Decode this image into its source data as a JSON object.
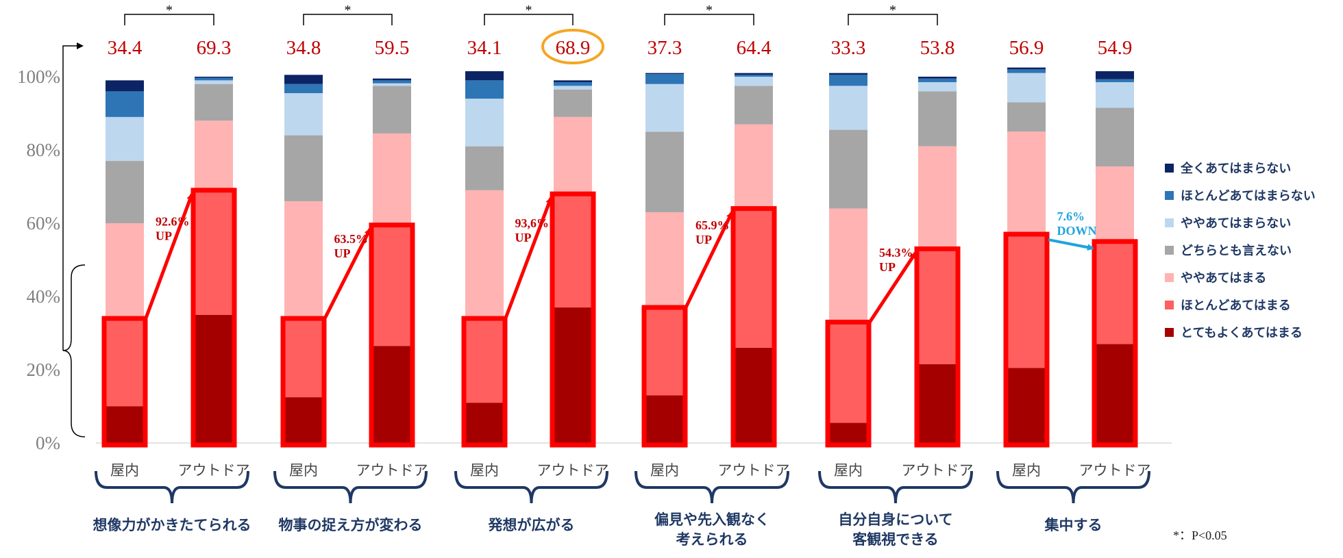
{
  "chart_data": {
    "type": "bar",
    "stacked": true,
    "yaxis": {
      "min": 0,
      "max": 100,
      "ticks": [
        "0%",
        "20%",
        "40%",
        "60%",
        "80%",
        "100%"
      ]
    },
    "legend_position": "right",
    "groups": [
      {
        "name": "想像力がかきたてられる",
        "significance": "*",
        "change": {
          "text": "92.6%\nUP",
          "direction": "up"
        },
        "bars": [
          {
            "label": "屋内",
            "top_value": "34.4",
            "values": [
              10,
              24,
              26,
              17,
              12,
              7,
              3
            ]
          },
          {
            "label": "アウトドア",
            "top_value": "69.3",
            "values": [
              35,
              34,
              19,
              10,
              1,
              0.7,
              0.3
            ]
          }
        ]
      },
      {
        "name": "物事の捉え方が変わる",
        "significance": "*",
        "change": {
          "text": "63.5%\nUP",
          "direction": "up"
        },
        "bars": [
          {
            "label": "屋内",
            "top_value": "34.8",
            "values": [
              12.5,
              21.5,
              32,
              18,
              11.5,
              2.5,
              2.5
            ]
          },
          {
            "label": "アウトドア",
            "top_value": "59.5",
            "values": [
              26.5,
              33,
              25,
              13,
              0.7,
              0.8,
              0.5
            ]
          }
        ]
      },
      {
        "name": "発想が広がる",
        "significance": "*",
        "change": {
          "text": "93,6%\nUP",
          "direction": "up"
        },
        "highlight_value": "68.9",
        "bars": [
          {
            "label": "屋内",
            "top_value": "34.1",
            "values": [
              11,
              23,
              35,
              12,
              13,
              5,
              2.5
            ]
          },
          {
            "label": "アウトドア",
            "top_value": "68.9",
            "values": [
              37,
              31,
              21,
              7.5,
              1,
              1,
              0.5
            ]
          }
        ]
      },
      {
        "name": "偏見や先入観なく\n考えられる",
        "significance": "*",
        "change": {
          "text": "65.9%\nUP",
          "direction": "up"
        },
        "bars": [
          {
            "label": "屋内",
            "top_value": "37.3",
            "values": [
              13,
              24,
              26,
              22,
              13,
              2.7,
              0.3
            ]
          },
          {
            "label": "アウトドア",
            "top_value": "64.4",
            "values": [
              26,
              38,
              23,
              10.5,
              2.5,
              0.5,
              0.5
            ]
          }
        ]
      },
      {
        "name": "自分自身について\n客観視できる",
        "significance": "*",
        "change": {
          "text": "54.3%\nUP",
          "direction": "up"
        },
        "bars": [
          {
            "label": "屋内",
            "top_value": "33.3",
            "values": [
              5.5,
              27.5,
              31,
              21.5,
              12,
              3,
              0.5
            ]
          },
          {
            "label": "アウトドア",
            "top_value": "53.8",
            "values": [
              21.5,
              31.5,
              28,
              15,
              2.5,
              1,
              0.5
            ]
          }
        ]
      },
      {
        "name": "集中する",
        "significance": "",
        "change": {
          "text": "7.6%\nDOWN",
          "direction": "down"
        },
        "bars": [
          {
            "label": "屋内",
            "top_value": "56.9",
            "values": [
              20.5,
              36.5,
              28,
              8,
              8,
              1,
              0.5
            ]
          },
          {
            "label": "アウトドア",
            "top_value": "54.9",
            "values": [
              27,
              28,
              20.5,
              16,
              7,
              0.8,
              2.2
            ]
          }
        ]
      }
    ],
    "series": [
      {
        "name": "とてもよくあてはまる",
        "color": "#a50000"
      },
      {
        "name": "ほとんどあてはまる",
        "color": "#ff5f5f"
      },
      {
        "name": "ややあてはまる",
        "color": "#ffb3b3"
      },
      {
        "name": "どちらとも言えない",
        "color": "#a6a6a6"
      },
      {
        "name": "ややあてはまらない",
        "color": "#bdd7ee"
      },
      {
        "name": "ほとんどあてはまらない",
        "color": "#2e75b6"
      },
      {
        "name": "全くあてはまらない",
        "color": "#0c2464"
      }
    ],
    "footnote": "*：P<0.05"
  }
}
